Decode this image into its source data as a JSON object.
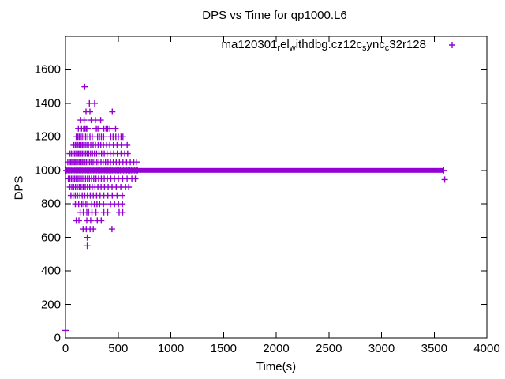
{
  "title": "DPS vs Time for qp1000.L6",
  "legend": {
    "series_name": "ma120301_rel_withdbg.cz12c_sync_c32r128",
    "segments": [
      {
        "t": "ma120301",
        "sub": false
      },
      {
        "t": "r",
        "sub": true
      },
      {
        "t": "el",
        "sub": false
      },
      {
        "t": "w",
        "sub": true
      },
      {
        "t": "ithdbg.cz12c",
        "sub": false
      },
      {
        "t": "s",
        "sub": true
      },
      {
        "t": "ync",
        "sub": false
      },
      {
        "t": "c",
        "sub": true
      },
      {
        "t": "32r128",
        "sub": false
      }
    ],
    "marker_glyph": "+"
  },
  "axes": {
    "x": {
      "label": "Time(s)",
      "min": 0,
      "max": 4000,
      "ticks": [
        0,
        500,
        1000,
        1500,
        2000,
        2500,
        3000,
        3500,
        4000
      ]
    },
    "y": {
      "label": "DPS",
      "min": 0,
      "max": 1800,
      "ticks": [
        0,
        200,
        400,
        600,
        800,
        1000,
        1200,
        1400,
        1600
      ]
    }
  },
  "colors": {
    "marker": "#9400d3",
    "frame": "#000000",
    "text": "#000000",
    "background": "#ffffff"
  },
  "chart_data": {
    "type": "scatter",
    "title": "DPS vs Time for qp1000.L6",
    "xlabel": "Time(s)",
    "ylabel": "DPS",
    "xlim": [
      0,
      4000
    ],
    "ylim": [
      0,
      1800
    ],
    "grid": false,
    "legend_position": "top-right-inside",
    "series": [
      {
        "name": "ma120301_rel_withdbg.cz12c_sync_c32r128",
        "marker": "plus",
        "color": "#9400d3",
        "band": {
          "y": 1000,
          "x_start": 0,
          "x_end": 3590,
          "note": "dense continuous run of points at DPS 1000"
        },
        "band_marker_times": [
          8,
          23,
          38,
          53,
          68,
          83,
          98,
          113,
          128,
          143,
          158,
          173,
          188,
          203,
          218,
          233,
          248,
          263,
          278,
          293,
          308,
          323,
          338,
          353,
          368,
          383,
          398,
          413,
          428,
          443,
          458,
          473,
          488,
          503,
          518,
          533,
          548,
          563,
          578,
          593,
          608,
          623,
          638,
          653,
          668,
          683,
          3590
        ],
        "rows": {
          "550": [
            207
          ],
          "600": [
            207
          ],
          "650": [
            167,
            197,
            234,
            264,
            441
          ],
          "700": [
            102,
            127,
            202,
            239,
            302,
            339
          ],
          "750": [
            139,
            169,
            202,
            219,
            251,
            289,
            364,
            401,
            509,
            543
          ],
          "800": [
            94,
            125,
            155,
            174,
            194,
            211,
            249,
            274,
            299,
            324,
            361,
            428,
            466,
            503,
            541
          ],
          "850": [
            52,
            72,
            93,
            114,
            136,
            159,
            183,
            208,
            235,
            264,
            295,
            328,
            364,
            402,
            444,
            490,
            540
          ],
          "900": [
            42,
            60,
            78,
            95,
            112,
            130,
            148,
            167,
            187,
            208,
            230,
            254,
            280,
            308,
            338,
            370,
            405,
            442,
            482,
            525,
            570,
            600
          ],
          "950": [
            27,
            42,
            57,
            71,
            85,
            99,
            113,
            127,
            142,
            157,
            173,
            190,
            208,
            227,
            247,
            268,
            290,
            314,
            340,
            368,
            398,
            430,
            465,
            502,
            542,
            585,
            630,
            663
          ],
          "1050": [
            22,
            35,
            48,
            60,
            72,
            84,
            96,
            108,
            120,
            133,
            146,
            159,
            172,
            186,
            200,
            215,
            230,
            246,
            262,
            280,
            298,
            317,
            337,
            358,
            380,
            404,
            428,
            454,
            482,
            512,
            545,
            580,
            615,
            648,
            676
          ],
          "1100": [
            40,
            55,
            70,
            85,
            98,
            110,
            122,
            135,
            148,
            162,
            176,
            190,
            205,
            220,
            238,
            256,
            275,
            295,
            318,
            342,
            368,
            395,
            425,
            458,
            492,
            528,
            562,
            590
          ],
          "1150": [
            77,
            92,
            105,
            118,
            132,
            147,
            160,
            173,
            188,
            203,
            218,
            240,
            262,
            285,
            310,
            335,
            360,
            390,
            420,
            455,
            490,
            530,
            586
          ],
          "1200": [
            102,
            117,
            130,
            142,
            158,
            175,
            192,
            212,
            232,
            254,
            305,
            322,
            341,
            362,
            430,
            452,
            478,
            502,
            527,
            545
          ],
          "1250": [
            122,
            152,
            172,
            184,
            197,
            210,
            284,
            299,
            314,
            364,
            384,
            401,
            421,
            476
          ],
          "1300": [
            144,
            177,
            244,
            284,
            334
          ],
          "1350": [
            195,
            232,
            444
          ],
          "1400": [
            227,
            277
          ],
          "1500": [
            182
          ]
        },
        "extra_points": [
          [
            0,
            45
          ],
          [
            3600,
            945
          ]
        ]
      }
    ]
  }
}
